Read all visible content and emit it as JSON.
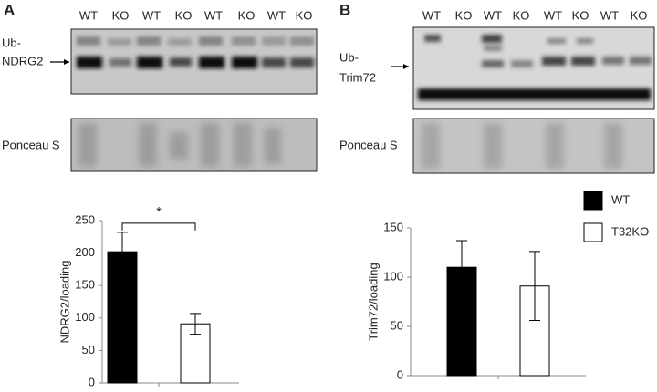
{
  "chart_data": [
    {
      "type": "bar",
      "panel": "A",
      "lanes": [
        "WT",
        "KO",
        "WT",
        "KO",
        "WT",
        "KO",
        "WT",
        "KO"
      ],
      "blot_label": [
        "Ub-",
        "NDRG2"
      ],
      "loading_label": "Ponceau S",
      "ylabel": "NDRG2/loading",
      "annotation": "*",
      "categories": [
        null
      ],
      "series": [
        {
          "color": "#000000",
          "values": [
            202
          ],
          "errors": [
            30
          ]
        },
        {
          "color": "#ffffff",
          "values": [
            91
          ],
          "errors": [
            16
          ]
        }
      ],
      "ylim": [
        0,
        250
      ],
      "yticks": [
        0,
        50,
        100,
        150,
        200,
        250
      ]
    },
    {
      "type": "bar",
      "panel": "B",
      "lanes": [
        "WT",
        "KO",
        "WT",
        "KO",
        "WT",
        "KO",
        "WT",
        "KO"
      ],
      "blot_label": [
        "Ub-",
        "Trim72"
      ],
      "loading_label": "Ponceau S",
      "ylabel": "Trim72/loading",
      "categories": [
        null
      ],
      "series": [
        {
          "name": "WT",
          "color": "#000000",
          "values": [
            110
          ],
          "errors": [
            27
          ]
        },
        {
          "name": "T32KO",
          "color": "#ffffff",
          "values": [
            91
          ],
          "errors": [
            35
          ]
        }
      ],
      "ylim": [
        0,
        150
      ],
      "yticks": [
        0,
        50,
        100,
        150
      ]
    }
  ]
}
